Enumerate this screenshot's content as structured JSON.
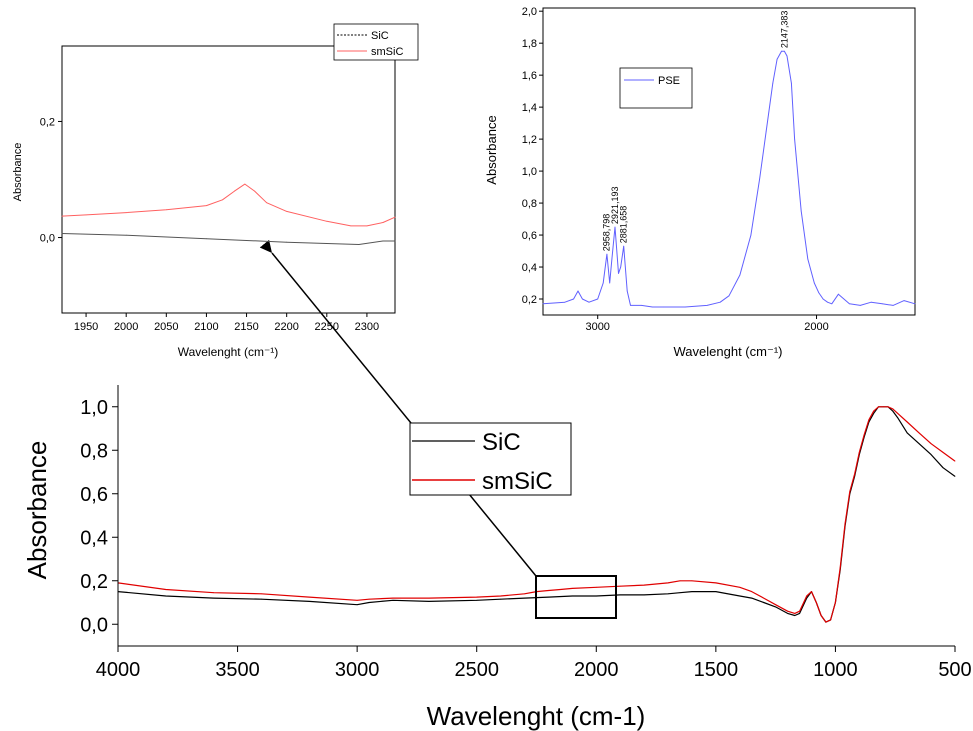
{
  "chart_data": [
    {
      "id": "main",
      "type": "line",
      "xlabel": "Wavelenght (cm-1)",
      "ylabel": "Absorbance",
      "xlim": [
        4000,
        500
      ],
      "ylim": [
        -0.1,
        1.1
      ],
      "x_ticks": [
        "4000",
        "3500",
        "3000",
        "2500",
        "2000",
        "1500",
        "1000",
        "500"
      ],
      "y_ticks": [
        "0,0",
        "0,2",
        "0,4",
        "0,6",
        "0,8",
        "1,0"
      ],
      "legend": {
        "placement": "center",
        "entries": [
          "SiC",
          "smSiC"
        ]
      },
      "series": [
        {
          "name": "SiC",
          "color": "#000000",
          "x": [
            4000,
            3800,
            3600,
            3400,
            3200,
            3000,
            2950,
            2850,
            2700,
            2500,
            2400,
            2300,
            2200,
            2100,
            2000,
            1900,
            1800,
            1700,
            1650,
            1600,
            1500,
            1400,
            1350,
            1300,
            1250,
            1200,
            1170,
            1150,
            1120,
            1100,
            1080,
            1060,
            1040,
            1020,
            1000,
            980,
            960,
            940,
            920,
            900,
            880,
            860,
            840,
            820,
            800,
            780,
            760,
            740,
            700,
            650,
            600,
            550,
            500
          ],
          "y": [
            0.15,
            0.13,
            0.12,
            0.115,
            0.105,
            0.09,
            0.1,
            0.11,
            0.105,
            0.11,
            0.115,
            0.12,
            0.125,
            0.13,
            0.13,
            0.135,
            0.135,
            0.14,
            0.145,
            0.15,
            0.15,
            0.13,
            0.12,
            0.1,
            0.08,
            0.05,
            0.04,
            0.05,
            0.12,
            0.15,
            0.1,
            0.04,
            0.01,
            0.02,
            0.1,
            0.25,
            0.45,
            0.6,
            0.68,
            0.78,
            0.86,
            0.93,
            0.97,
            1.0,
            1.0,
            1.0,
            0.98,
            0.95,
            0.88,
            0.83,
            0.78,
            0.72,
            0.68
          ]
        },
        {
          "name": "smSiC",
          "color": "#e00000",
          "x": [
            4000,
            3800,
            3600,
            3400,
            3200,
            3000,
            2950,
            2850,
            2700,
            2500,
            2400,
            2300,
            2250,
            2200,
            2150,
            2100,
            2000,
            1900,
            1800,
            1700,
            1650,
            1600,
            1500,
            1400,
            1350,
            1300,
            1250,
            1200,
            1170,
            1150,
            1120,
            1100,
            1080,
            1060,
            1040,
            1020,
            1000,
            980,
            960,
            940,
            920,
            900,
            880,
            860,
            840,
            820,
            800,
            780,
            760,
            740,
            700,
            650,
            600,
            550,
            500
          ],
          "y": [
            0.19,
            0.16,
            0.145,
            0.14,
            0.125,
            0.11,
            0.115,
            0.12,
            0.12,
            0.125,
            0.13,
            0.14,
            0.15,
            0.155,
            0.16,
            0.165,
            0.17,
            0.175,
            0.18,
            0.19,
            0.2,
            0.2,
            0.19,
            0.17,
            0.15,
            0.12,
            0.09,
            0.06,
            0.05,
            0.06,
            0.13,
            0.15,
            0.1,
            0.04,
            0.01,
            0.02,
            0.1,
            0.26,
            0.46,
            0.61,
            0.69,
            0.79,
            0.87,
            0.94,
            0.98,
            1.0,
            1.0,
            1.0,
            0.99,
            0.97,
            0.93,
            0.88,
            0.83,
            0.79,
            0.75
          ]
        }
      ]
    },
    {
      "id": "inset-left",
      "type": "line",
      "xlabel": "Wavelenght (cm⁻¹)",
      "ylabel": "Absorbance",
      "xlim": [
        1920,
        2335
      ],
      "ylim": [
        -0.13,
        0.33
      ],
      "x_ticks": [
        "1950",
        "2000",
        "2050",
        "2100",
        "2150",
        "2200",
        "2250",
        "2300"
      ],
      "y_ticks": [
        "0,0",
        "0,2"
      ],
      "legend": {
        "placement": "top-right",
        "entries": [
          "SiC",
          "smSiC"
        ]
      },
      "series": [
        {
          "name": "SiC",
          "color": "#555555",
          "x": [
            1920,
            2000,
            2100,
            2200,
            2290,
            2320,
            2335
          ],
          "y": [
            0.007,
            0.004,
            -0.002,
            -0.008,
            -0.012,
            -0.006,
            -0.006
          ]
        },
        {
          "name": "smSiC",
          "color": "#ff6060",
          "x": [
            1920,
            1950,
            2000,
            2050,
            2100,
            2120,
            2135,
            2148,
            2160,
            2175,
            2200,
            2250,
            2280,
            2300,
            2320,
            2335
          ],
          "y": [
            0.037,
            0.039,
            0.043,
            0.048,
            0.055,
            0.065,
            0.08,
            0.092,
            0.08,
            0.06,
            0.045,
            0.028,
            0.02,
            0.02,
            0.026,
            0.035
          ]
        }
      ]
    },
    {
      "id": "inset-right",
      "type": "line",
      "xlabel": "Wavelenght (cm⁻¹)",
      "ylabel": "Absorbance",
      "xlim": [
        3250,
        1550
      ],
      "ylim": [
        0.1,
        2.02
      ],
      "x_ticks": [
        "3000",
        "2000"
      ],
      "y_ticks": [
        "0,2",
        "0,4",
        "0,6",
        "0,8",
        "1,0",
        "1,2",
        "1,4",
        "1,6",
        "1,8",
        "2,0"
      ],
      "legend": {
        "placement": "top-left",
        "entries": [
          "PSE"
        ]
      },
      "peak_labels": [
        {
          "x": 2958.798,
          "y": 0.48,
          "text": "2958,798"
        },
        {
          "x": 2921.193,
          "y": 0.65,
          "text": "2921,193"
        },
        {
          "x": 2881.658,
          "y": 0.53,
          "text": "2881,658"
        },
        {
          "x": 2147.383,
          "y": 1.75,
          "text": "2147,383"
        }
      ],
      "series": [
        {
          "name": "PSE",
          "color": "#6060ff",
          "x": [
            3250,
            3150,
            3110,
            3090,
            3070,
            3040,
            3000,
            2975,
            2958,
            2945,
            2935,
            2921,
            2905,
            2895,
            2881,
            2865,
            2850,
            2800,
            2750,
            2700,
            2600,
            2500,
            2440,
            2400,
            2350,
            2300,
            2260,
            2230,
            2200,
            2180,
            2160,
            2147,
            2135,
            2115,
            2100,
            2070,
            2040,
            2010,
            1990,
            1970,
            1950,
            1930,
            1900,
            1850,
            1800,
            1750,
            1700,
            1650,
            1600,
            1550
          ],
          "y": [
            0.17,
            0.18,
            0.2,
            0.25,
            0.2,
            0.18,
            0.2,
            0.3,
            0.48,
            0.3,
            0.45,
            0.65,
            0.36,
            0.4,
            0.53,
            0.25,
            0.16,
            0.16,
            0.15,
            0.15,
            0.15,
            0.16,
            0.18,
            0.22,
            0.35,
            0.6,
            0.95,
            1.25,
            1.55,
            1.7,
            1.75,
            1.75,
            1.72,
            1.55,
            1.2,
            0.75,
            0.45,
            0.3,
            0.24,
            0.2,
            0.18,
            0.17,
            0.23,
            0.17,
            0.16,
            0.18,
            0.17,
            0.16,
            0.19,
            0.17
          ]
        }
      ]
    }
  ]
}
